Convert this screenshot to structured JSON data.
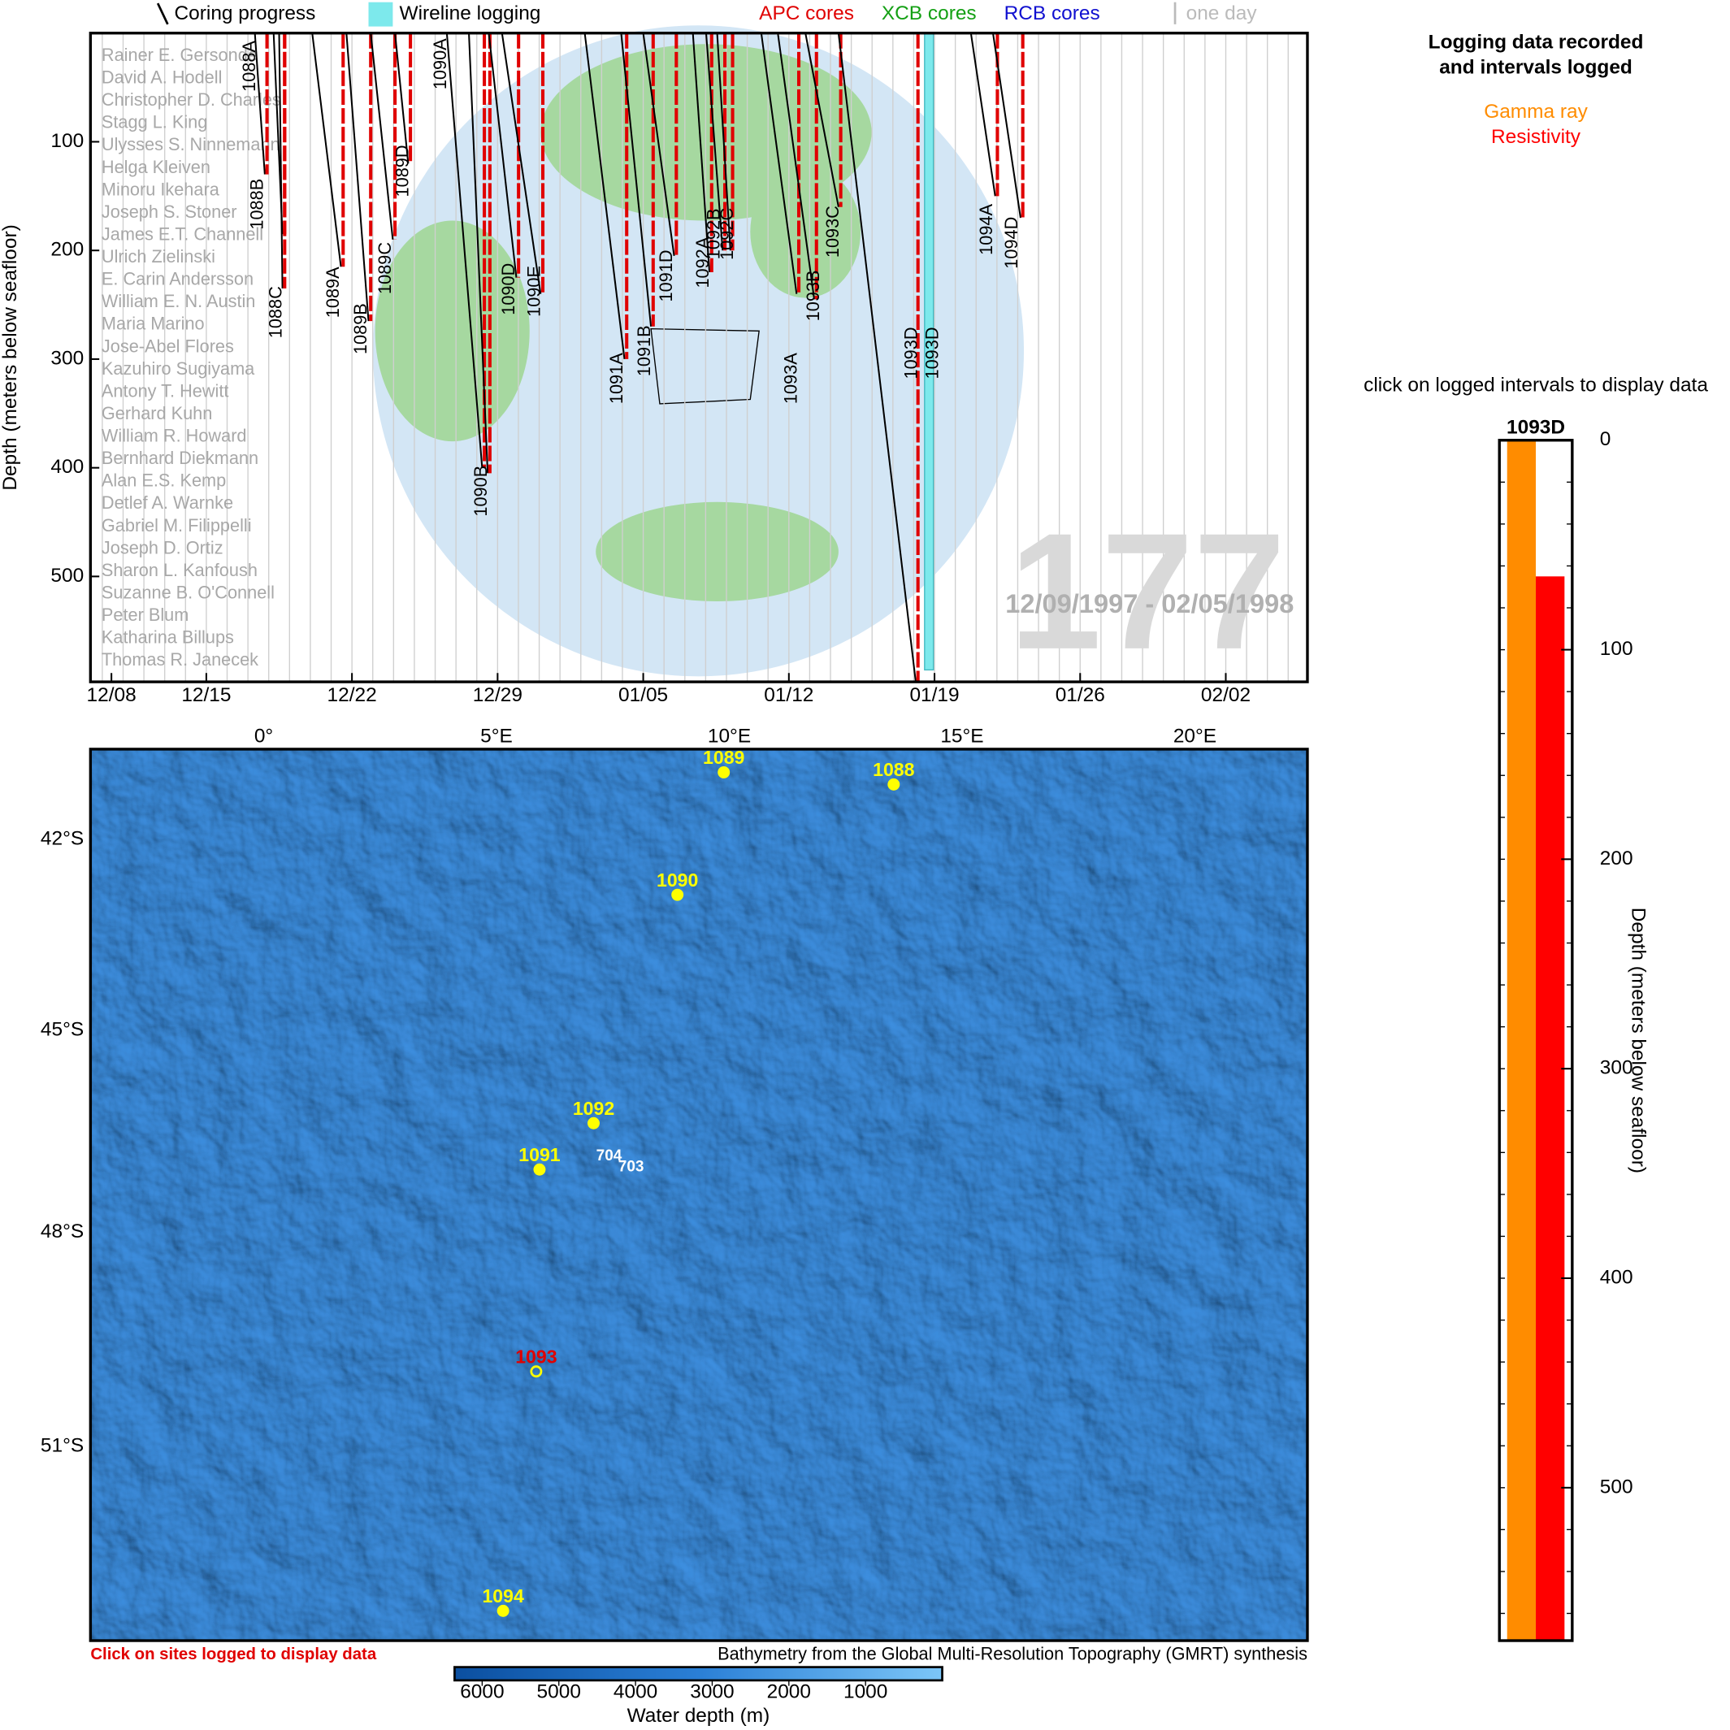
{
  "legend": {
    "coring": "Coring progress",
    "wireline": "Wireline logging",
    "apc": "APC cores",
    "xcb": "XCB cores",
    "rcb": "RCB cores",
    "day": "one day"
  },
  "timeline": {
    "y_label": "Depth (meters below seafloor)",
    "ylim": [
      0,
      597
    ],
    "yticks": [
      100,
      200,
      300,
      400,
      500
    ],
    "xticks": [
      "12/08",
      "12/15",
      "12/22",
      "12/29",
      "01/05",
      "01/12",
      "01/19",
      "01/26",
      "02/02"
    ],
    "scientists": [
      "Rainer E. Gersonde",
      "David A. Hodell",
      "Christopher D. Charles",
      "Stagg L. King",
      "Ulysses S. Ninnemann",
      "Helga Kleiven",
      "Minoru Ikehara",
      "Joseph S. Stoner",
      "James E.T. Channell",
      "Ulrich Zielinski",
      "E. Carin Andersson",
      "William E. N. Austin",
      "Maria Marino",
      "Jose-Abel Flores",
      "Kazuhiro Sugiyama",
      "Antony T. Hewitt",
      "Gerhard Kuhn",
      "William R. Howard",
      "Bernhard Diekmann",
      "Alan E.S. Kemp",
      "Detlef A. Warnke",
      "Gabriel M. Filippelli",
      "Joseph D. Ortiz",
      "Sharon L. Kanfoush",
      "Suzanne B. O'Connell",
      "Peter Blum",
      "Katharina Billups",
      "Thomas R. Janecek"
    ],
    "holes": [
      {
        "name": "1088A",
        "depth": 130
      },
      {
        "name": "1088B",
        "depth": 185
      },
      {
        "name": "1088C",
        "depth": 235
      },
      {
        "name": "1089A",
        "depth": 215
      },
      {
        "name": "1089B",
        "depth": 265
      },
      {
        "name": "1089C",
        "depth": 190
      },
      {
        "name": "1089D",
        "depth": 120
      },
      {
        "name": "1090A",
        "depth": 400
      },
      {
        "name": "1090B",
        "depth": 405
      },
      {
        "name": "1090D",
        "depth": 225
      },
      {
        "name": "1090E",
        "depth": 240
      },
      {
        "name": "1091A",
        "depth": 300
      },
      {
        "name": "1091B",
        "depth": 270
      },
      {
        "name": "1091D",
        "depth": 205
      },
      {
        "name": "1092A",
        "depth": 220
      },
      {
        "name": "1092B",
        "depth": 200
      },
      {
        "name": "1092C",
        "depth": 200
      },
      {
        "name": "1093A",
        "depth": 240
      },
      {
        "name": "1093B",
        "depth": 245
      },
      {
        "name": "1093C",
        "depth": 160
      },
      {
        "name": "1093D",
        "depth": 597
      },
      {
        "name": "1094A",
        "depth": 150
      },
      {
        "name": "1094D",
        "depth": 170
      }
    ],
    "wireline_hole": "1093D",
    "wireline_depth": 586,
    "leg": "177",
    "dates": "12/09/1997 - 02/05/1998"
  },
  "map": {
    "lon_ticks": [
      "0°",
      "5°E",
      "10°E",
      "15°E",
      "20°E"
    ],
    "lat_ticks": [
      "42°S",
      "45°S",
      "48°S",
      "51°S"
    ],
    "sites": [
      "1089",
      "1088",
      "1090",
      "1092",
      "1091",
      "1093",
      "1094"
    ],
    "other_sites": [
      "704",
      "703"
    ],
    "note": "Click on sites logged to display data",
    "credit": "Bathymetry from the Global Multi-Resolution Topography (GMRT) synthesis"
  },
  "colorbar": {
    "lim": [
      6360,
      0
    ],
    "ticks": [
      6000,
      5000,
      4000,
      3000,
      2000,
      1000
    ],
    "label": "Water depth (m)"
  },
  "log_panel": {
    "title_lines": [
      "Logging data recorded",
      "and intervals logged"
    ],
    "instruction": "click on logged intervals to display data",
    "hole": "1093D",
    "ylim": [
      0,
      573
    ],
    "yticks": [
      0,
      100,
      200,
      300,
      400,
      500
    ],
    "y_label": "Depth (meters below seafloor)",
    "series": [
      {
        "name": "Gamma ray",
        "color": "#ff8c00",
        "top": 0,
        "bottom": 573
      },
      {
        "name": "Resistivity",
        "color": "#ff0000",
        "top": 65,
        "bottom": 573
      }
    ]
  }
}
